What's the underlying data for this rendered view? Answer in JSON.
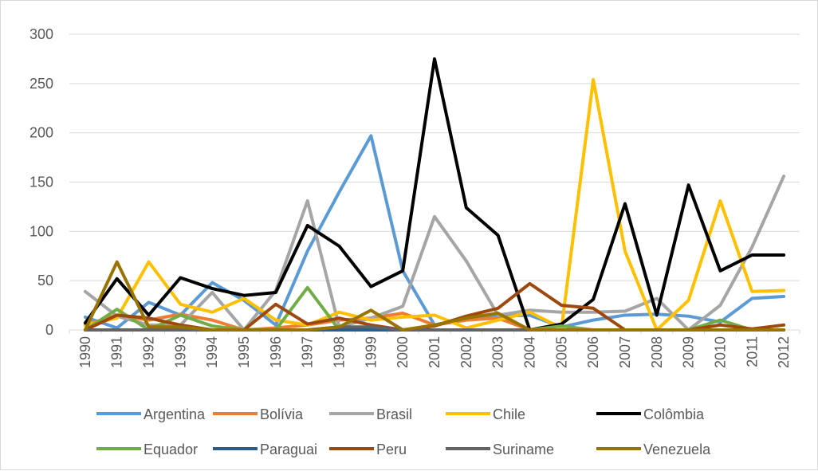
{
  "chart_data": {
    "type": "line",
    "categories": [
      "1990",
      "1991",
      "1992",
      "1993",
      "1994",
      "1995",
      "1996",
      "1997",
      "1998",
      "1999",
      "2000",
      "2001",
      "2002",
      "2003",
      "2004",
      "2005",
      "2006",
      "2007",
      "2008",
      "2009",
      "2010",
      "2011",
      "2012"
    ],
    "ylim": [
      0,
      300
    ],
    "yticks": [
      0,
      50,
      100,
      150,
      200,
      250,
      300
    ],
    "grid": "horizontal",
    "legend_position": "bottom",
    "series": [
      {
        "name": "Argentina",
        "color": "#5b9bd5",
        "values": [
          13,
          2,
          28,
          15,
          48,
          30,
          5,
          80,
          140,
          197,
          60,
          5,
          12,
          14,
          15,
          3,
          10,
          15,
          16,
          14,
          8,
          32,
          34
        ]
      },
      {
        "name": "Bolívia",
        "color": "#ed7d31",
        "values": [
          5,
          15,
          10,
          16,
          10,
          0,
          2,
          5,
          10,
          12,
          17,
          5,
          10,
          12,
          0,
          0,
          0,
          0,
          0,
          0,
          0,
          0,
          0
        ]
      },
      {
        "name": "Brasil",
        "color": "#a5a5a5",
        "values": [
          39,
          14,
          5,
          5,
          38,
          0,
          40,
          131,
          3,
          12,
          24,
          115,
          70,
          15,
          20,
          18,
          18,
          19,
          32,
          0,
          25,
          84,
          156
        ]
      },
      {
        "name": "Chile",
        "color": "#ffc000",
        "values": [
          5,
          12,
          69,
          26,
          18,
          32,
          10,
          5,
          18,
          10,
          13,
          15,
          2,
          10,
          18,
          2,
          254,
          80,
          0,
          30,
          131,
          39,
          40
        ]
      },
      {
        "name": "Colômbia",
        "color": "#000000",
        "values": [
          7,
          52,
          15,
          53,
          42,
          35,
          38,
          106,
          85,
          44,
          60,
          275,
          124,
          96,
          0,
          6,
          31,
          128,
          15,
          147,
          60,
          76,
          76
        ]
      },
      {
        "name": "Equador",
        "color": "#70ad47",
        "values": [
          0,
          21,
          0,
          15,
          4,
          0,
          0,
          43,
          0,
          0,
          0,
          0,
          0,
          0,
          0,
          4,
          0,
          0,
          0,
          0,
          10,
          0,
          0
        ]
      },
      {
        "name": "Paraguai",
        "color": "#255e91",
        "values": [
          0,
          0,
          0,
          0,
          0,
          0,
          0,
          0,
          0,
          0,
          0,
          0,
          0,
          0,
          0,
          0,
          0,
          0,
          0,
          0,
          0,
          0,
          0
        ]
      },
      {
        "name": "Peru",
        "color": "#9e480e",
        "values": [
          0,
          15,
          12,
          5,
          0,
          0,
          26,
          6,
          12,
          5,
          0,
          4,
          14,
          22,
          47,
          25,
          22,
          0,
          0,
          0,
          5,
          1,
          5
        ]
      },
      {
        "name": "Suriname",
        "color": "#636363",
        "values": [
          0,
          0,
          0,
          0,
          0,
          0,
          0,
          0,
          3,
          3,
          0,
          0,
          0,
          0,
          0,
          0,
          0,
          0,
          0,
          0,
          0,
          0,
          0
        ]
      },
      {
        "name": "Venezuela",
        "color": "#997300",
        "values": [
          0,
          69,
          3,
          3,
          0,
          0,
          0,
          0,
          3,
          20,
          0,
          5,
          12,
          17,
          0,
          0,
          0,
          0,
          0,
          0,
          0,
          0,
          0
        ]
      }
    ]
  }
}
